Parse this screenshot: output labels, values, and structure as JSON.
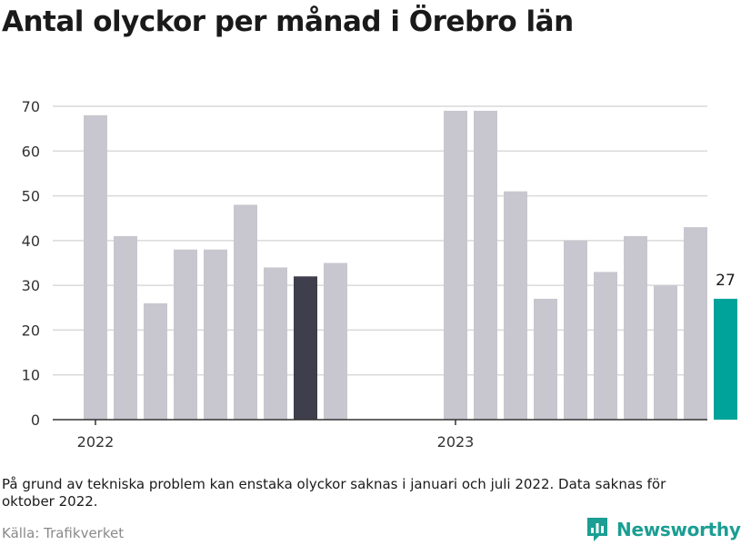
{
  "title": "Antal olyckor per månad i Örebro län",
  "note": "På grund av tekniska problem kan enstaka olyckor saknas i januari och juli 2022. Data saknas för oktober 2022.",
  "source": "Källa: Trafikverket",
  "brand": {
    "name": "Newsworthy",
    "icon": "newsworthy-logo-icon",
    "color": "#1b9e93"
  },
  "chart_data": {
    "type": "bar",
    "title": "Antal olyckor per månad i Örebro län",
    "xlabel": "",
    "ylabel": "",
    "ylim": [
      0,
      70
    ],
    "yticks": [
      0,
      10,
      20,
      30,
      40,
      50,
      60,
      70
    ],
    "grid": true,
    "x_tick_labels": [
      {
        "label": "2022",
        "at_bar": 0
      },
      {
        "label": "2023",
        "at_bar": 12
      }
    ],
    "bars": [
      {
        "value": 68,
        "color": "#c8c7cf"
      },
      {
        "value": 41,
        "color": "#c8c7cf"
      },
      {
        "value": 26,
        "color": "#c8c7cf"
      },
      {
        "value": 38,
        "color": "#c8c7cf"
      },
      {
        "value": 38,
        "color": "#c8c7cf"
      },
      {
        "value": 48,
        "color": "#c8c7cf"
      },
      {
        "value": 34,
        "color": "#c8c7cf"
      },
      {
        "value": 32,
        "color": "#3f3e4c"
      },
      {
        "value": 35,
        "color": "#c8c7cf"
      },
      {
        "value": null,
        "color": "#c8c7cf"
      },
      {
        "value": null,
        "color": "#c8c7cf"
      },
      {
        "value": null,
        "color": "#c8c7cf"
      },
      {
        "value": 69,
        "color": "#c8c7cf"
      },
      {
        "value": 69,
        "color": "#c8c7cf"
      },
      {
        "value": 51,
        "color": "#c8c7cf"
      },
      {
        "value": 27,
        "color": "#c8c7cf"
      },
      {
        "value": 40,
        "color": "#c8c7cf"
      },
      {
        "value": 33,
        "color": "#c8c7cf"
      },
      {
        "value": 41,
        "color": "#c8c7cf"
      },
      {
        "value": 30,
        "color": "#c8c7cf"
      },
      {
        "value": 43,
        "color": "#c8c7cf"
      },
      {
        "value": 27,
        "color": "#00a39a",
        "label": "27"
      }
    ],
    "colors": {
      "bar": "#c8c7cf",
      "highlight_dark": "#3f3e4c",
      "highlight_latest": "#00a39a",
      "grid": "#d9d9d9",
      "axis": "#333333"
    }
  }
}
